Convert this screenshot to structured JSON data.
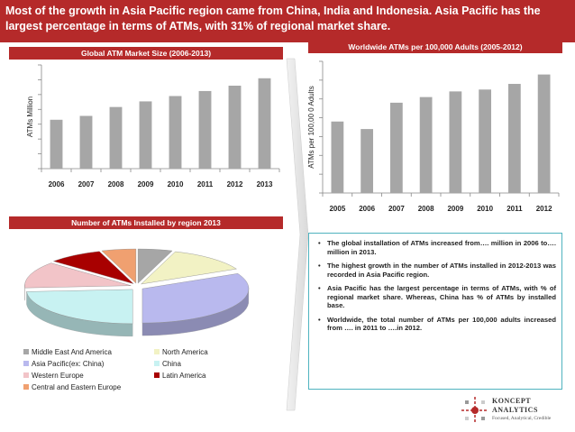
{
  "header": {
    "text": "Most of the growth in Asia Pacific region came from China, India and Indonesia. Asia Pacific has the largest percentage in terms of ATMs, with 31% of regional market share."
  },
  "chart_data": [
    {
      "type": "bar",
      "title": "Global  ATM Market Size (2006-2013)",
      "ylabel": "ATMs Million",
      "xlabel": "",
      "categories": [
        "2006",
        "2007",
        "2008",
        "2009",
        "2010",
        "2011",
        "2012",
        "2013"
      ],
      "values": [
        1.65,
        1.78,
        2.08,
        2.27,
        2.45,
        2.62,
        2.8,
        3.05
      ],
      "ylim": [
        0,
        3.5
      ],
      "grid": false,
      "color": "#a6a6a6"
    },
    {
      "type": "bar",
      "title": "Worldwide ATMs per 100,000 Adults (2005-2012)",
      "ylabel": "ATMs  per 100,00 0 Adults",
      "xlabel": "",
      "categories": [
        "2005",
        "2006",
        "2007",
        "2008",
        "2009",
        "2010",
        "2011",
        "2012"
      ],
      "values": [
        38,
        34,
        48,
        51,
        54,
        55,
        58,
        63
      ],
      "ylim": [
        0,
        70
      ],
      "grid": false,
      "color": "#a6a6a6"
    },
    {
      "type": "pie",
      "title": "Number of ATMs Installed by region 2013",
      "categories": [
        "Middle East And America",
        "North America",
        "Asia Pacific(ex: China)",
        "China",
        "Western Europe",
        "Latin America",
        "Central and Eastern Europe"
      ],
      "values": [
        5,
        12,
        31,
        23,
        12,
        8,
        5
      ],
      "colors": [
        "#a6a6a6",
        "#f2f2c4",
        "#b9b9ee",
        "#c8f2f2",
        "#f2c4c8",
        "#a80000",
        "#f0a070"
      ],
      "legend": "bottom"
    }
  ],
  "bullets": [
    "The global installation of ATMs increased from…. million in 2006 to…. million in 2013.",
    "The highest growth in the number of ATMs installed in 2012-2013 was recorded in Asia Pacific region.",
    "Asia Pacific has the largest percentage in terms of ATMs, with % of regional market share. Whereas, China has % of ATMs by installed base.",
    "Worldwide, the total number of ATMs per 100,000 adults increased from …. in 2011 to ….in 2012."
  ],
  "logo": {
    "name_line1": "KONCEPT",
    "name_line2": "ANALYTICS",
    "tagline": "Focused, Analytical, Credible"
  }
}
